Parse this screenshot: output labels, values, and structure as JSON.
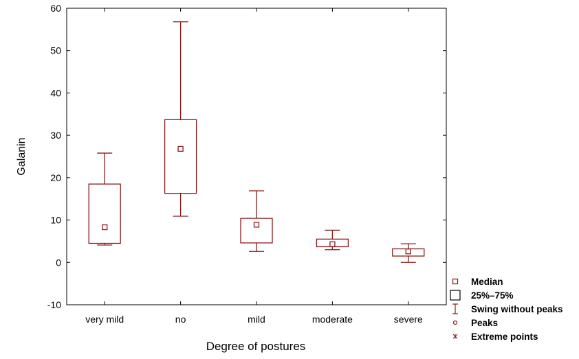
{
  "chart_data": {
    "type": "boxplot",
    "xlabel": "Degree of postures",
    "ylabel": "Galanin",
    "ylim": [
      -10,
      60
    ],
    "yticks": [
      -10,
      0,
      10,
      20,
      30,
      40,
      50,
      60
    ],
    "grid": false,
    "legend_position": "bottom-right",
    "box_color": "#8B1A1A",
    "categories": [
      "very mild",
      "no",
      "mild",
      "moderate",
      "severe"
    ],
    "boxes": [
      {
        "category": "very mild",
        "median": 8.3,
        "q1": 4.5,
        "q3": 18.5,
        "whisker_low": 4.1,
        "whisker_high": 25.8
      },
      {
        "category": "no",
        "median": 26.8,
        "q1": 16.3,
        "q3": 33.7,
        "whisker_low": 10.9,
        "whisker_high": 56.8
      },
      {
        "category": "mild",
        "median": 8.9,
        "q1": 4.6,
        "q3": 10.4,
        "whisker_low": 2.6,
        "whisker_high": 16.9
      },
      {
        "category": "moderate",
        "median": 4.3,
        "q1": 3.7,
        "q3": 5.5,
        "whisker_low": 3.0,
        "whisker_high": 7.6
      },
      {
        "category": "severe",
        "median": 2.6,
        "q1": 1.5,
        "q3": 3.2,
        "whisker_low": 0.0,
        "whisker_high": 4.4
      }
    ],
    "legend": [
      {
        "symbol": "median",
        "label": "Median"
      },
      {
        "symbol": "box",
        "label": "25%–75%"
      },
      {
        "symbol": "whisker",
        "label": "Swing without peaks"
      },
      {
        "symbol": "circle",
        "label": "Peaks"
      },
      {
        "symbol": "star",
        "label": "Extreme points"
      }
    ]
  }
}
